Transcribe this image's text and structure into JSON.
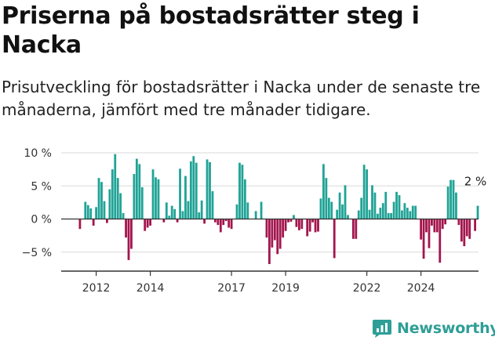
{
  "title": "Priserna på bostadsrätter steg i Nacka",
  "subtitle": "Prisutveckling för bostadsrätter i Nacka under de senaste tre månaderna, jämfört med tre månader tidigare.",
  "brand": "Newsworthy",
  "colors": {
    "positive": "#20a396",
    "negative": "#a3164d",
    "grid": "#d9d9d9",
    "axis": "#333333",
    "brand": "#2e9e96"
  },
  "chart_data": {
    "type": "bar",
    "title": "Priserna på bostadsrätter steg i Nacka",
    "xlabel": "",
    "ylabel": "",
    "ylim": [
      -8.5,
      10.5
    ],
    "y_ticks": [
      10,
      5,
      0,
      -5
    ],
    "y_tick_labels": [
      "10 %",
      "5 %",
      "0 %",
      "−5 %"
    ],
    "x_tick_labels": [
      "2012",
      "2014",
      "2017",
      "2019",
      "2022",
      "2024"
    ],
    "x_tick_positions": [
      6,
      26,
      56,
      76,
      106,
      126
    ],
    "start_label": "2011-01",
    "frequency": "monthly",
    "annotation": "2 %",
    "series": [
      {
        "name": "Prisutveckling (%)",
        "values": [
          -1.5,
          0.0,
          2.6,
          2.1,
          1.6,
          -1.0,
          1.8,
          6.2,
          5.6,
          2.7,
          -0.6,
          4.5,
          7.5,
          9.8,
          6.2,
          3.9,
          0.9,
          -2.8,
          -6.2,
          -4.5,
          6.8,
          9.1,
          8.3,
          4.8,
          -1.8,
          -1.3,
          -1.0,
          7.5,
          6.3,
          6.0,
          0.0,
          -0.5,
          2.5,
          0.5,
          2.0,
          1.5,
          -0.5,
          7.6,
          1.2,
          6.5,
          2.7,
          8.7,
          9.5,
          8.5,
          1.0,
          2.8,
          -0.7,
          9.0,
          8.6,
          4.2,
          -0.5,
          -0.9,
          -2.0,
          -0.9,
          -0.3,
          -1.3,
          -1.5,
          0.0,
          2.2,
          8.5,
          8.2,
          6.0,
          2.5,
          0.0,
          0.0,
          1.2,
          0.0,
          2.6,
          0.0,
          -2.8,
          -6.8,
          -4.3,
          -3.2,
          -5.3,
          -4.5,
          -2.8,
          -1.8,
          -0.5,
          -0.4,
          0.6,
          -1.2,
          -1.7,
          -1.5,
          0.0,
          -2.6,
          -1.9,
          -0.5,
          -2.0,
          -1.9,
          3.1,
          8.3,
          6.2,
          3.2,
          2.6,
          -5.9,
          1.4,
          4.0,
          2.2,
          5.1,
          0.6,
          0.0,
          -3.0,
          -3.0,
          1.3,
          3.2,
          8.2,
          7.5,
          1.4,
          5.1,
          4.0,
          0.8,
          1.7,
          2.4,
          4.1,
          0.9,
          0.9,
          2.6,
          4.1,
          3.6,
          1.3,
          2.4,
          1.7,
          1.2,
          2.0,
          2.0,
          0.0,
          -3.1,
          -6.0,
          -2.0,
          -4.4,
          -1.0,
          -2.0,
          -2.0,
          -6.6,
          -1.5,
          -0.8,
          4.9,
          5.9,
          5.9,
          4.0,
          -0.9,
          -3.4,
          -4.1,
          -2.6,
          -3.0,
          0.0,
          -1.8,
          2.0
        ]
      }
    ]
  }
}
